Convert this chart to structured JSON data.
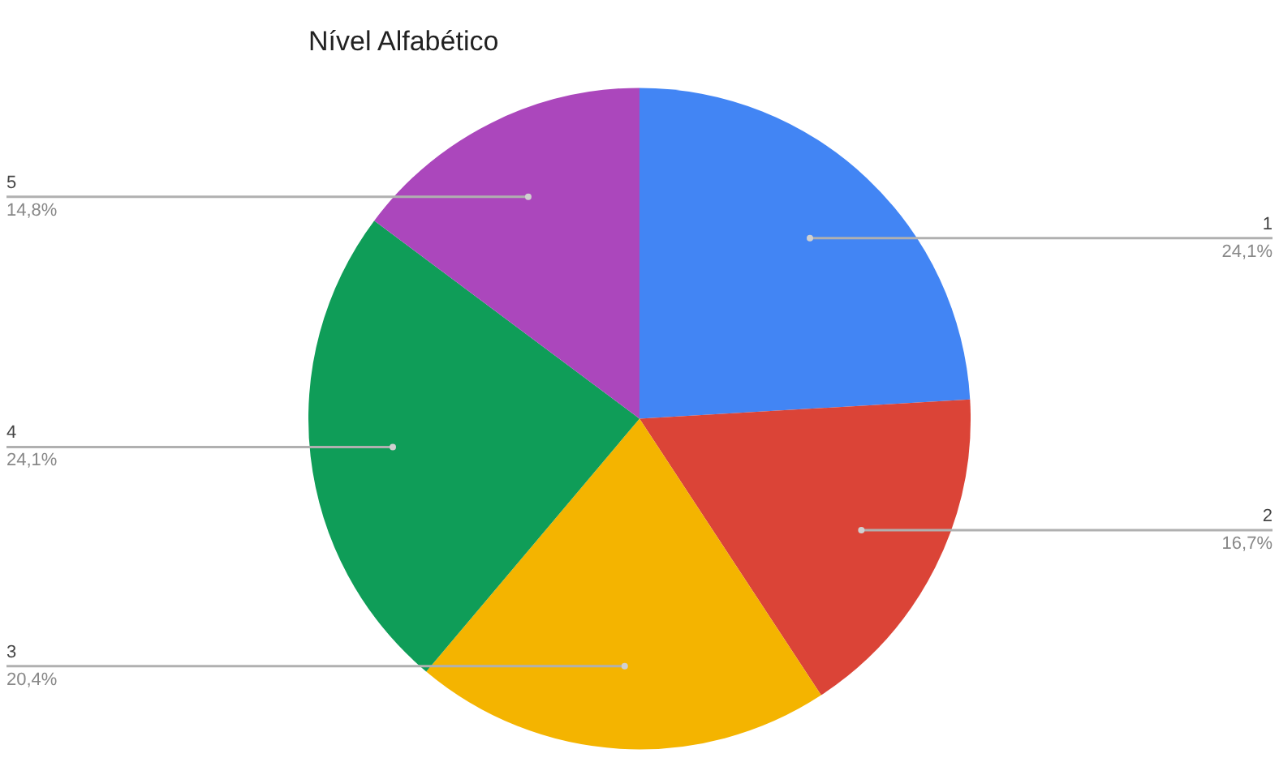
{
  "chart_data": {
    "type": "pie",
    "title": "Nível Alfabético",
    "categories": [
      "1",
      "2",
      "3",
      "4",
      "5"
    ],
    "values": [
      24.1,
      16.7,
      20.4,
      24.1,
      14.8
    ],
    "value_labels": [
      "24,1%",
      "16,7%",
      "20,4%",
      "24,1%",
      "14,8%"
    ],
    "colors": [
      "#4285f4",
      "#db4437",
      "#f4b400",
      "#0f9d58",
      "#ab47bc"
    ],
    "legend": false
  }
}
